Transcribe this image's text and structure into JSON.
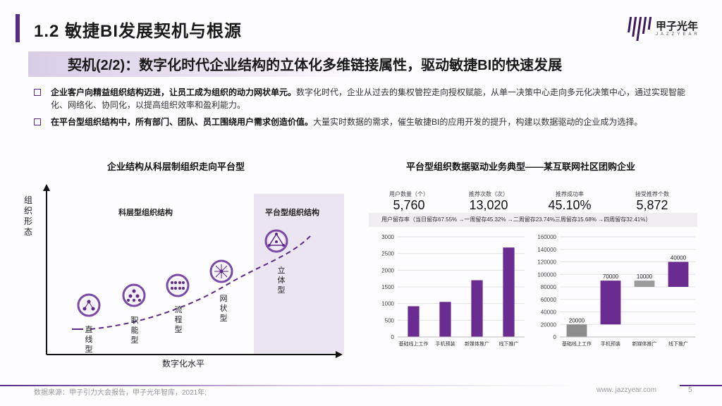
{
  "header": {
    "title": "1.2 敏捷BI发展契机与根源",
    "logo_text": "甲子光年",
    "logo_sub": "JAZZYEAR",
    "subtitle": "契机(2/2)：数字化时代企业结构的立体化多维链接属性，驱动敏捷BI的快速发展"
  },
  "bullets": [
    {
      "bold": "企业客户向精益组织结构迈进，让员工成为组织的动力网状单元。",
      "text": "数字化时代，企业从过去的集权管控走向授权赋能，从单一决策中心走向多元化决策中心，通过实现智能化、网络化、协同化，以提高组织效率和盈利能力。"
    },
    {
      "bold": "在平台型组织结构中，所有部门、团队、员工围绕用户需求创造价值。",
      "text": "大量实时数据的需求，催生敏捷BI的应用开发的提升，构建以数据驱动的企业成为选择。"
    }
  ],
  "left_section": {
    "title": "企业结构从科层制组织走向平台型",
    "hier_label": "科层型组织结构",
    "plat_label": "平台型组织结构",
    "y_axis": "组织形态",
    "x_axis": "数字化水平",
    "stages": [
      "直线型",
      "职能型",
      "流程型",
      "网状型",
      "立体型"
    ]
  },
  "right_section": {
    "title": "平台型组织数据驱动业务典型——某互联网社区团购企业",
    "metrics": [
      {
        "label": "用户数量（个）",
        "value": "5,760"
      },
      {
        "label": "推荐次数（次）",
        "value": "13,020"
      },
      {
        "label": "推荐成功率",
        "value": "45.10%"
      },
      {
        "label": "接受推荐个数",
        "value": "5,872"
      }
    ],
    "retention": "用户留存率（当日留存67.55% →一周留存45.32% →二周留存23.74%三周留存15.68% →四周留存32.41%）"
  },
  "colors": {
    "accent": "#5b2a86",
    "bar": "#6a2c91",
    "grey_bar": "#8c8c8c",
    "platform_bg": "#ebe5f2"
  },
  "chart_data": [
    {
      "type": "bar",
      "categories": [
        "基础线上工作",
        "手机预装",
        "新媒体推广",
        "线下推广"
      ],
      "values": [
        920,
        1050,
        1700,
        2680
      ],
      "ylim": [
        0,
        3000
      ],
      "yticks": [
        0,
        500,
        1000,
        1500,
        2000,
        2500,
        3000
      ],
      "title": "",
      "xlabel": "",
      "ylabel": "",
      "grid": true
    },
    {
      "type": "bar",
      "subtype": "waterfall",
      "categories": [
        "基础线上工作",
        "手机预装",
        "新媒体推广",
        "线下推广"
      ],
      "values": [
        20000,
        70000,
        10000,
        40000
      ],
      "data_labels": [
        "20000",
        "70000",
        "10000",
        "40000"
      ],
      "ylim": [
        0,
        160000
      ],
      "yticks": [
        0,
        20000,
        40000,
        60000,
        80000,
        100000,
        120000,
        140000,
        160000
      ],
      "title": "",
      "xlabel": "",
      "ylabel": "",
      "grid": true
    }
  ],
  "footer": {
    "source": "数据来源：甲子引力大会报告，甲子光年智库，2021年;",
    "website": "www. jazzyear.com",
    "page": "5"
  }
}
